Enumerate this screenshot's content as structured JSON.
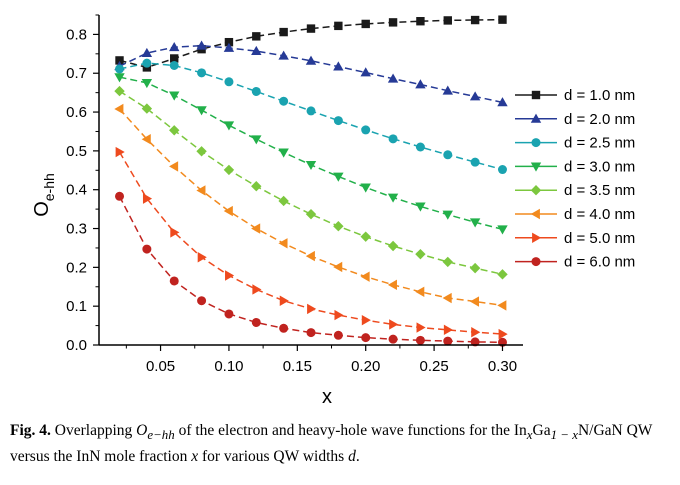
{
  "chart_data": {
    "type": "line",
    "xlabel": "x",
    "ylabel_main": "O",
    "ylabel_sub": "e-hh",
    "xlim": [
      0.005,
      0.315
    ],
    "ylim": [
      0.0,
      0.85
    ],
    "x_ticks": [
      0.05,
      0.1,
      0.15,
      0.2,
      0.25,
      0.3
    ],
    "x_tick_labels": [
      "0.05",
      "0.10",
      "0.15",
      "0.20",
      "0.25",
      "0.30"
    ],
    "y_ticks": [
      0.0,
      0.1,
      0.2,
      0.3,
      0.4,
      0.5,
      0.6,
      0.7,
      0.8
    ],
    "y_tick_labels": [
      "0.0",
      "0.1",
      "0.2",
      "0.3",
      "0.4",
      "0.5",
      "0.6",
      "0.7",
      "0.8"
    ],
    "legend_position": "right",
    "x": [
      0.02,
      0.04,
      0.06,
      0.08,
      0.1,
      0.12,
      0.14,
      0.16,
      0.18,
      0.2,
      0.22,
      0.24,
      0.26,
      0.28,
      0.3
    ],
    "series": [
      {
        "name": "d = 1.0 nm",
        "color": "#1a1a1a",
        "marker": "square",
        "values": [
          0.733,
          0.715,
          0.738,
          0.762,
          0.78,
          0.795,
          0.806,
          0.815,
          0.822,
          0.827,
          0.831,
          0.834,
          0.836,
          0.837,
          0.838
        ]
      },
      {
        "name": "d = 2.0 nm",
        "color": "#263a96",
        "marker": "triangle-up",
        "values": [
          0.718,
          0.752,
          0.767,
          0.771,
          0.765,
          0.757,
          0.745,
          0.732,
          0.717,
          0.702,
          0.686,
          0.671,
          0.655,
          0.64,
          0.625
        ]
      },
      {
        "name": "d = 2.5 nm",
        "color": "#1aa3b0",
        "marker": "circle",
        "values": [
          0.711,
          0.726,
          0.72,
          0.701,
          0.678,
          0.653,
          0.628,
          0.603,
          0.578,
          0.554,
          0.531,
          0.51,
          0.49,
          0.471,
          0.452
        ]
      },
      {
        "name": "d = 3.0 nm",
        "color": "#22b04a",
        "marker": "triangle-down",
        "values": [
          0.69,
          0.675,
          0.643,
          0.605,
          0.566,
          0.53,
          0.496,
          0.464,
          0.434,
          0.406,
          0.38,
          0.357,
          0.336,
          0.316,
          0.298
        ]
      },
      {
        "name": "d = 3.5 nm",
        "color": "#7cc73e",
        "marker": "diamond",
        "values": [
          0.654,
          0.609,
          0.553,
          0.499,
          0.451,
          0.409,
          0.371,
          0.337,
          0.306,
          0.279,
          0.255,
          0.234,
          0.214,
          0.198,
          0.182
        ]
      },
      {
        "name": "d = 4.0 nm",
        "color": "#f28a1e",
        "marker": "triangle-left",
        "values": [
          0.608,
          0.53,
          0.46,
          0.398,
          0.345,
          0.3,
          0.262,
          0.229,
          0.201,
          0.176,
          0.155,
          0.137,
          0.121,
          0.112,
          0.102
        ]
      },
      {
        "name": "d = 5.0 nm",
        "color": "#ee4a1e",
        "marker": "triangle-right",
        "values": [
          0.497,
          0.377,
          0.29,
          0.226,
          0.179,
          0.143,
          0.114,
          0.093,
          0.077,
          0.064,
          0.053,
          0.045,
          0.039,
          0.033,
          0.028
        ]
      },
      {
        "name": "d = 6.0 nm",
        "color": "#c0231f",
        "marker": "circle",
        "values": [
          0.383,
          0.247,
          0.165,
          0.114,
          0.08,
          0.058,
          0.043,
          0.032,
          0.025,
          0.019,
          0.015,
          0.012,
          0.01,
          0.008,
          0.007
        ]
      }
    ]
  },
  "caption": {
    "fig_label": "Fig. 4.",
    "text_1": " Overlapping ",
    "o_symbol": "O",
    "o_sub": "e−hh",
    "text_2": " of the electron and heavy-hole wave functions for the ",
    "in_text": "In",
    "in_sub": "x",
    "ga_text": "Ga",
    "ga_sub": "1 − x",
    "text_3": "N/GaN QW versus the InN mole fraction ",
    "x_var": "x",
    "text_4": " for various QW widths ",
    "d_var": "d",
    "text_5": "."
  }
}
